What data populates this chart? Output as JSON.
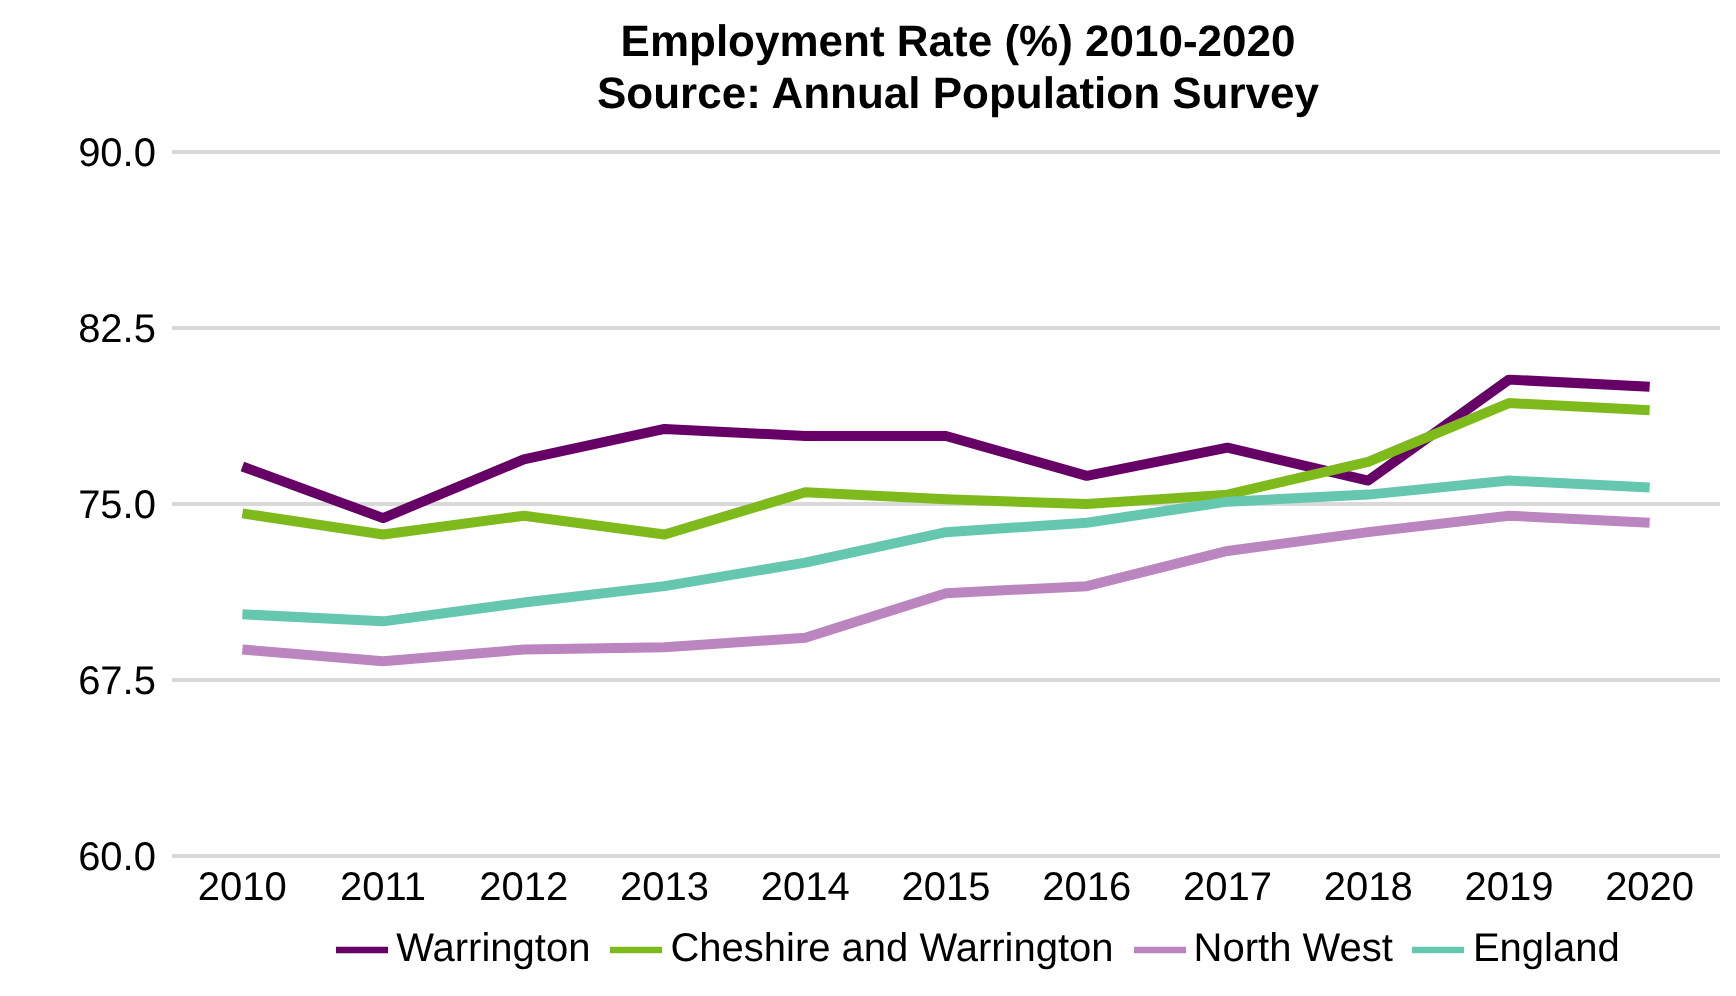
{
  "chart_data": {
    "type": "line",
    "title": "Employment Rate (%) 2010-2020",
    "subtitle": "Source: Annual Population Survey",
    "categories": [
      "2010",
      "2011",
      "2012",
      "2013",
      "2014",
      "2015",
      "2016",
      "2017",
      "2018",
      "2019",
      "2020"
    ],
    "series": [
      {
        "name": "Warrington",
        "color": "#660066",
        "values": [
          76.6,
          74.4,
          76.9,
          78.2,
          77.9,
          77.9,
          76.2,
          77.4,
          76.0,
          80.3,
          80.0
        ]
      },
      {
        "name": "Cheshire and Warrington",
        "color": "#7fba1c",
        "values": [
          74.6,
          73.7,
          74.5,
          73.7,
          75.5,
          75.2,
          75.0,
          75.4,
          76.8,
          79.3,
          79.0
        ]
      },
      {
        "name": "North West",
        "color": "#bb86c0",
        "values": [
          68.8,
          68.3,
          68.8,
          68.9,
          69.3,
          71.2,
          71.5,
          73.0,
          73.8,
          74.5,
          74.2
        ]
      },
      {
        "name": "England",
        "color": "#66c7b0",
        "values": [
          70.3,
          70.0,
          70.8,
          71.5,
          72.5,
          73.8,
          74.2,
          75.1,
          75.4,
          76.0,
          75.7
        ]
      }
    ],
    "ylim": [
      60,
      90
    ],
    "yticks": [
      {
        "value": 60,
        "label": "60.0"
      },
      {
        "value": 67.5,
        "label": "67.5"
      },
      {
        "value": 75,
        "label": "75.0"
      },
      {
        "value": 82.5,
        "label": "82.5"
      },
      {
        "value": 90,
        "label": "90.0"
      }
    ],
    "grid": "y",
    "legend": "bottom",
    "marker": "none",
    "line_style": "solid"
  }
}
